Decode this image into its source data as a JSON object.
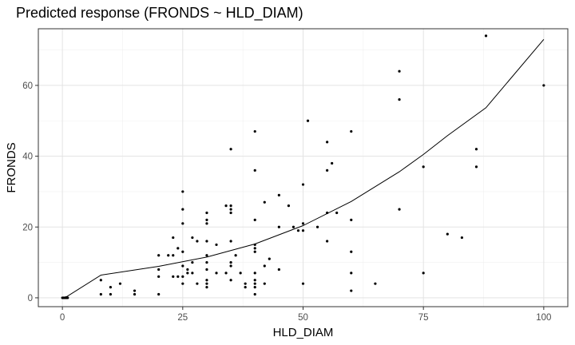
{
  "chart_data": {
    "type": "scatter",
    "title": "Predicted response (FRONDS ~ HLD_DIAM)",
    "xlabel": "HLD_DIAM",
    "ylabel": "FRONDS",
    "xlim": [
      -5,
      105
    ],
    "ylim": [
      -2.5,
      76
    ],
    "x_ticks": [
      0,
      25,
      50,
      75,
      100
    ],
    "y_ticks": [
      0,
      20,
      40,
      60
    ],
    "x_minor": [
      12.5,
      37.5,
      62.5,
      87.5
    ],
    "y_minor": [
      10,
      30,
      50,
      70
    ],
    "grid": true,
    "legend": "none",
    "points": [
      [
        0,
        0
      ],
      [
        0.3,
        0
      ],
      [
        0.6,
        0
      ],
      [
        0.9,
        0
      ],
      [
        1.1,
        0
      ],
      [
        0.5,
        0
      ],
      [
        0.2,
        0
      ],
      [
        0.8,
        0
      ],
      [
        8,
        5
      ],
      [
        8,
        1
      ],
      [
        10,
        3
      ],
      [
        10,
        1
      ],
      [
        12,
        4
      ],
      [
        15,
        2
      ],
      [
        15,
        1
      ],
      [
        20,
        12
      ],
      [
        20,
        8
      ],
      [
        20,
        6
      ],
      [
        20,
        1
      ],
      [
        22,
        12
      ],
      [
        23,
        17
      ],
      [
        23,
        12
      ],
      [
        23,
        6
      ],
      [
        24,
        14
      ],
      [
        24,
        6
      ],
      [
        25,
        30
      ],
      [
        25,
        25
      ],
      [
        25,
        21
      ],
      [
        25,
        13
      ],
      [
        25,
        9
      ],
      [
        25,
        6
      ],
      [
        25,
        4
      ],
      [
        26,
        8
      ],
      [
        26,
        7
      ],
      [
        27,
        17
      ],
      [
        27,
        10
      ],
      [
        27,
        7
      ],
      [
        28,
        16
      ],
      [
        28,
        4
      ],
      [
        30,
        24
      ],
      [
        30,
        22
      ],
      [
        30,
        21
      ],
      [
        30,
        16
      ],
      [
        30,
        12
      ],
      [
        30,
        10
      ],
      [
        30,
        8
      ],
      [
        30,
        5
      ],
      [
        30,
        4
      ],
      [
        30,
        3
      ],
      [
        32,
        15
      ],
      [
        32,
        7
      ],
      [
        34,
        26
      ],
      [
        34,
        7
      ],
      [
        35,
        42
      ],
      [
        35,
        26
      ],
      [
        35,
        25
      ],
      [
        35,
        24
      ],
      [
        35,
        16
      ],
      [
        35,
        10
      ],
      [
        35,
        9
      ],
      [
        35,
        5
      ],
      [
        36,
        12
      ],
      [
        37,
        7
      ],
      [
        38,
        4
      ],
      [
        38,
        3
      ],
      [
        40,
        47
      ],
      [
        40,
        36
      ],
      [
        40,
        22
      ],
      [
        40,
        15
      ],
      [
        40,
        14
      ],
      [
        40,
        13
      ],
      [
        40,
        7
      ],
      [
        40,
        5
      ],
      [
        40,
        4
      ],
      [
        40,
        3
      ],
      [
        40,
        1
      ],
      [
        42,
        27
      ],
      [
        42,
        9
      ],
      [
        42,
        4
      ],
      [
        43,
        11
      ],
      [
        45,
        29
      ],
      [
        45,
        20
      ],
      [
        45,
        8
      ],
      [
        47,
        26
      ],
      [
        48,
        20
      ],
      [
        49,
        19
      ],
      [
        50,
        32
      ],
      [
        50,
        21
      ],
      [
        50,
        19
      ],
      [
        50,
        4
      ],
      [
        51,
        50
      ],
      [
        53,
        20
      ],
      [
        55,
        44
      ],
      [
        55,
        36
      ],
      [
        55,
        24
      ],
      [
        55,
        16
      ],
      [
        56,
        38
      ],
      [
        57,
        24
      ],
      [
        60,
        47
      ],
      [
        60,
        22
      ],
      [
        60,
        13
      ],
      [
        60,
        7
      ],
      [
        60,
        2
      ],
      [
        65,
        4
      ],
      [
        70,
        64
      ],
      [
        70,
        56
      ],
      [
        70,
        25
      ],
      [
        75,
        37
      ],
      [
        75,
        7
      ],
      [
        80,
        18
      ],
      [
        83,
        17
      ],
      [
        86,
        42
      ],
      [
        86,
        37
      ],
      [
        88,
        74
      ],
      [
        100,
        60
      ]
    ],
    "fit_line": [
      [
        0,
        0
      ],
      [
        1,
        0.4
      ],
      [
        8,
        6.4
      ],
      [
        20,
        8.9
      ],
      [
        30,
        11.5
      ],
      [
        40,
        15.2
      ],
      [
        50,
        20.4
      ],
      [
        60,
        27.2
      ],
      [
        70,
        35.6
      ],
      [
        75,
        40.5
      ],
      [
        80,
        45.8
      ],
      [
        88,
        53.7
      ],
      [
        100,
        73
      ]
    ]
  }
}
